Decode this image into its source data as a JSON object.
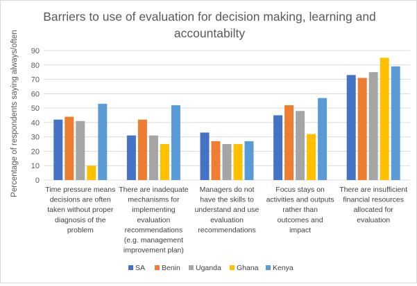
{
  "chart_data": {
    "type": "bar",
    "title_lines": [
      "Barriers to use of evaluation for decision making, learning and",
      "accountabilty"
    ],
    "ylabel": "Percentage of respondents saying always/often",
    "xlabel": "",
    "ylim": [
      0,
      90
    ],
    "yticks": [
      0,
      10,
      20,
      30,
      40,
      50,
      60,
      70,
      80,
      90
    ],
    "grid": true,
    "legend_position": "bottom",
    "categories": [
      [
        "Time pressure means",
        "decisions are often",
        "taken without proper",
        "diagnosis of the",
        "problem"
      ],
      [
        "There are inadequate",
        "mechanisms for",
        "implementing",
        "evaluation",
        "recommendations",
        "(e.g. management",
        "improvement plan)"
      ],
      [
        "Managers do not",
        "have the skills to",
        "understand and use",
        "evaluation",
        "recommendations"
      ],
      [
        "Focus stays on",
        "activities and outputs",
        "rather than",
        "outcomes and",
        "impact"
      ],
      [
        "There are insufficient",
        "financial resources",
        "allocated for",
        "evaluation"
      ]
    ],
    "series": [
      {
        "name": "SA",
        "color": "#4472c4",
        "values": [
          42,
          31,
          33,
          45,
          73
        ]
      },
      {
        "name": "Benin",
        "color": "#ed7d31",
        "values": [
          44,
          42,
          27,
          52,
          71
        ]
      },
      {
        "name": "Uganda",
        "color": "#a5a5a5",
        "values": [
          41,
          31,
          25,
          48,
          75
        ]
      },
      {
        "name": "Ghana",
        "color": "#ffc000",
        "values": [
          10,
          25,
          25,
          32,
          85
        ]
      },
      {
        "name": "Kenya",
        "color": "#5b9bd5",
        "values": [
          53,
          52,
          27,
          57,
          79
        ]
      }
    ]
  }
}
